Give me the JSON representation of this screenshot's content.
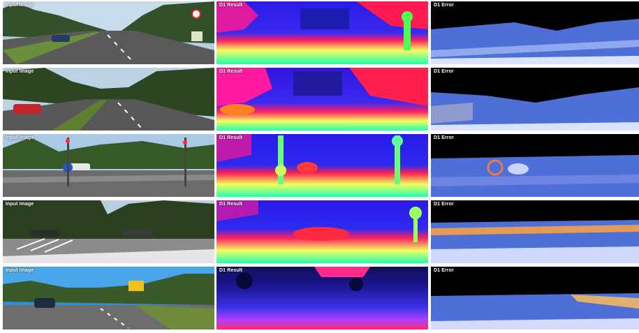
{
  "columns": {
    "input": "Input Image",
    "result": "D1 Result",
    "error": "D1 Error"
  },
  "rows": [
    {
      "input_label": "Input Image",
      "result_label": "D1 Result",
      "error_label": "D1 Error"
    },
    {
      "input_label": "Input Image",
      "result_label": "D1 Result",
      "error_label": "D1 Error"
    },
    {
      "input_label": "Input Image",
      "result_label": "D1 Result",
      "error_label": "D1 Error"
    },
    {
      "input_label": "Input Image",
      "result_label": "D1 Result",
      "error_label": "D1 Error"
    },
    {
      "input_label": "Input Image",
      "result_label": "D1 Result",
      "error_label": "D1 Error"
    }
  ],
  "colors": {
    "sky": "#cfe3f2",
    "tree": "#2f4a1f",
    "road": "#5b5b5b",
    "result_far": "#1a1ae0",
    "result_mid": "#ff1a5a",
    "result_near": "#22ff90",
    "error_bg": "#000000",
    "error_mid": "#4f6fd8"
  }
}
